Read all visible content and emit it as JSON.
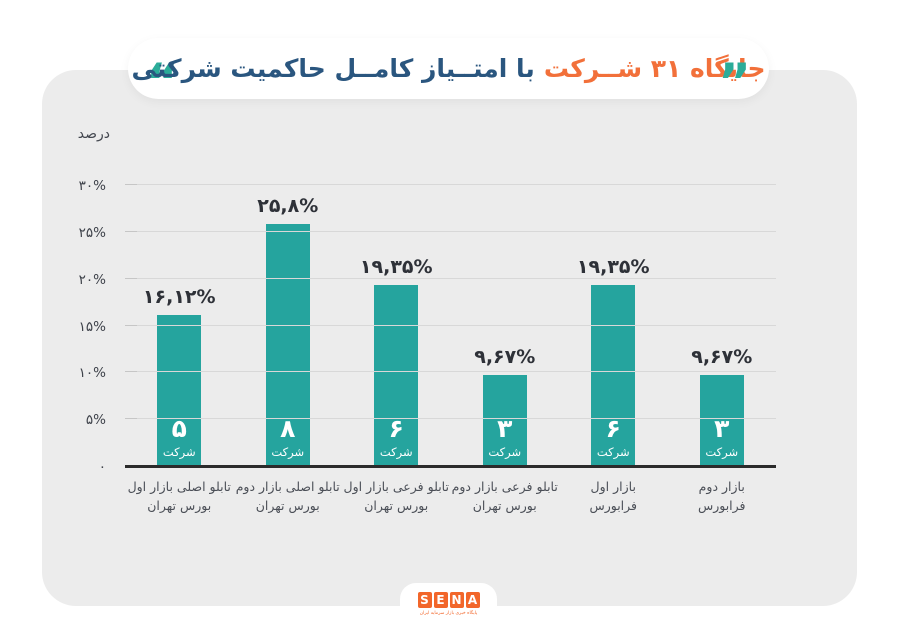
{
  "title": {
    "highlight": "جایگاه ۳۱ شــرکت",
    "rest": "با امتــیاز کامــل حاکمیت شرکتی",
    "highlight_color": "#F2703A",
    "rest_color": "#2A567F",
    "quote_open": "“",
    "quote_close": "”",
    "quote_color": "#2BAC99"
  },
  "chart_data": {
    "type": "bar",
    "title": "جایگاه ۳۱ شرکت با امتیاز کامل حاکمیت شرکتی",
    "ylabel": "درصد",
    "xlabel": "",
    "ylim": [
      0,
      30
    ],
    "grid": true,
    "bar_color": "#25A49E",
    "y_ticks": [
      {
        "value": 30,
        "label": "۳۰%"
      },
      {
        "value": 25,
        "label": "۲۵%"
      },
      {
        "value": 20,
        "label": "۲۰%"
      },
      {
        "value": 15,
        "label": "۱۵%"
      },
      {
        "value": 10,
        "label": "۱۰%"
      },
      {
        "value": 5,
        "label": "۵%"
      },
      {
        "value": 0,
        "label": "۰"
      }
    ],
    "categories": [
      {
        "line1": "تابلو اصلی بازار اول",
        "line2": "بورس تهران"
      },
      {
        "line1": "تابلو اصلی بازار دوم",
        "line2": "بورس تهران"
      },
      {
        "line1": "تابلو فرعی بازار اول",
        "line2": "بورس تهران"
      },
      {
        "line1": "تابلو فرعی بازار دوم",
        "line2": "بورس تهران"
      },
      {
        "line1": "بازار اول",
        "line2": "فرابورس"
      },
      {
        "line1": "بازار دوم",
        "line2": "فرابورس"
      }
    ],
    "values": [
      16.12,
      25.8,
      19.35,
      9.67,
      19.35,
      9.67
    ],
    "value_labels": [
      "۱۶,۱۲%",
      "۲۵,۸%",
      "۱۹,۳۵%",
      "۹,۶۷%",
      "۱۹,۳۵%",
      "۹,۶۷%"
    ],
    "counts": [
      "۵",
      "۸",
      "۶",
      "۳",
      "۶",
      "۳"
    ],
    "count_unit": "شرکت"
  },
  "footer": {
    "logo_letters": [
      "S",
      "E",
      "N",
      "A"
    ],
    "logo_color": "#F2662A",
    "tagline": "پایگاه خبری بازار سرمایه ایران"
  }
}
